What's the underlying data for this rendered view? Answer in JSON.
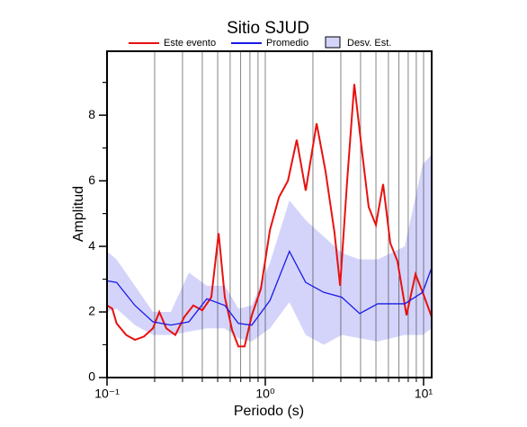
{
  "chart_data": {
    "type": "line",
    "title": "Sitio SJUD",
    "x_label": "Periodo (s)",
    "y_label": "Amplitud",
    "xscale": "log",
    "xlim": [
      0.1,
      11.25
    ],
    "ylim": [
      0,
      9.95
    ],
    "xticks": [
      {
        "value": 0.1,
        "label": "10⁻¹"
      },
      {
        "value": 1,
        "label": "10⁰"
      },
      {
        "value": 10,
        "label": "10¹"
      }
    ],
    "yticks": [
      0,
      2,
      4,
      6,
      8
    ],
    "grid": "x",
    "series": [
      {
        "name": "Este evento",
        "color": "#e8110f",
        "x": [
          0.1,
          0.108,
          0.115,
          0.132,
          0.15,
          0.171,
          0.195,
          0.214,
          0.237,
          0.27,
          0.308,
          0.351,
          0.4,
          0.456,
          0.507,
          0.555,
          0.617,
          0.676,
          0.74,
          0.822,
          0.937,
          1.07,
          1.22,
          1.39,
          1.58,
          1.8,
          2.11,
          2.4,
          2.74,
          2.97,
          3.29,
          3.65,
          4.06,
          4.5,
          5.0,
          5.55,
          6.16,
          6.84,
          7.8,
          8.89,
          9.87,
          11.25
        ],
        "values": [
          2.2,
          2.1,
          1.65,
          1.3,
          1.15,
          1.25,
          1.5,
          2.0,
          1.5,
          1.3,
          1.85,
          2.2,
          2.05,
          2.45,
          4.4,
          2.45,
          1.45,
          0.95,
          0.95,
          1.9,
          2.7,
          4.5,
          5.5,
          6.0,
          7.25,
          5.7,
          7.75,
          6.3,
          4.4,
          2.8,
          6.0,
          8.95,
          7.0,
          5.2,
          4.65,
          5.9,
          4.1,
          3.55,
          1.9,
          3.15,
          2.6,
          1.85
        ]
      },
      {
        "name": "Promedio",
        "color": "#1a1ae6",
        "x": [
          0.1,
          0.115,
          0.15,
          0.195,
          0.253,
          0.329,
          0.427,
          0.555,
          0.676,
          0.822,
          1.07,
          1.42,
          1.8,
          2.34,
          3.04,
          3.95,
          5.13,
          7.6,
          9.87,
          11.25
        ],
        "values": [
          2.95,
          2.9,
          2.2,
          1.7,
          1.6,
          1.7,
          2.4,
          2.2,
          1.65,
          1.6,
          2.35,
          3.85,
          2.9,
          2.6,
          2.45,
          1.95,
          2.25,
          2.25,
          2.6,
          3.35
        ]
      },
      {
        "name": "Desv. Est.",
        "color": "#d4d4fb",
        "x": [
          0.1,
          0.115,
          0.15,
          0.195,
          0.253,
          0.329,
          0.427,
          0.555,
          0.676,
          0.822,
          1.07,
          1.42,
          1.8,
          2.34,
          3.04,
          3.95,
          5.13,
          7.6,
          9.87,
          11.25
        ],
        "upper": [
          3.85,
          3.6,
          2.8,
          2.0,
          2.0,
          3.2,
          2.8,
          2.8,
          2.1,
          2.2,
          3.5,
          5.4,
          4.8,
          4.3,
          3.8,
          3.6,
          3.6,
          4.0,
          6.5,
          6.8
        ],
        "lower": [
          2.0,
          2.1,
          1.6,
          1.3,
          1.3,
          1.4,
          1.5,
          1.5,
          1.2,
          1.1,
          1.5,
          2.3,
          1.3,
          1.0,
          1.3,
          1.2,
          1.1,
          1.3,
          1.3,
          1.5
        ]
      }
    ]
  }
}
